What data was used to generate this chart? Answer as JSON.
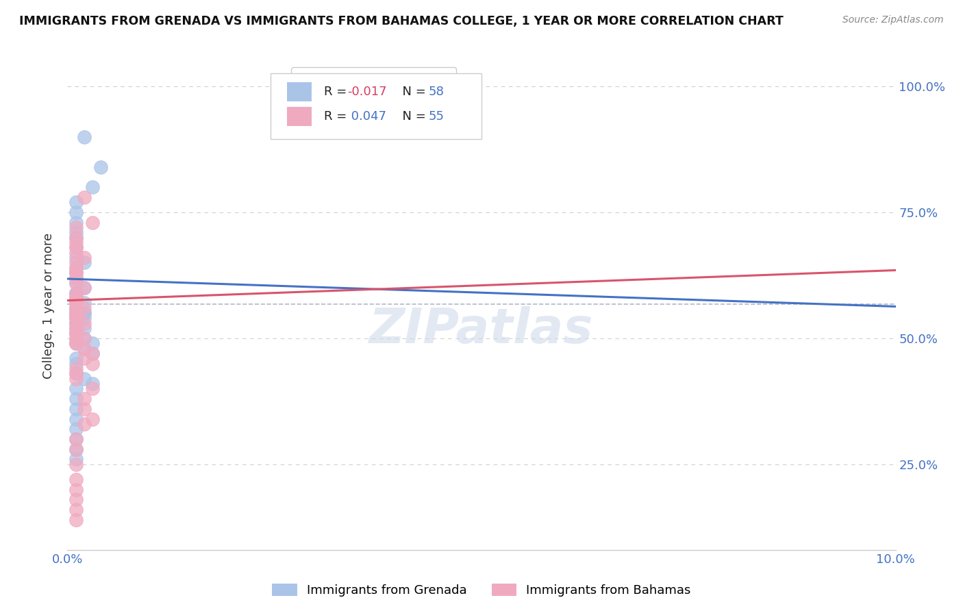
{
  "title": "IMMIGRANTS FROM GRENADA VS IMMIGRANTS FROM BAHAMAS COLLEGE, 1 YEAR OR MORE CORRELATION CHART",
  "source": "Source: ZipAtlas.com",
  "ylabel": "College, 1 year or more",
  "ytick_vals": [
    0.25,
    0.5,
    0.75,
    1.0
  ],
  "ytick_labels": [
    "25.0%",
    "50.0%",
    "75.0%",
    "100.0%"
  ],
  "xmin": 0.0,
  "xmax": 0.1,
  "ymin": 0.08,
  "ymax": 1.05,
  "grenada_R": -0.017,
  "grenada_N": 58,
  "bahamas_R": 0.047,
  "bahamas_N": 55,
  "grenada_color": "#aac4e8",
  "bahamas_color": "#f0aac0",
  "grenada_line_color": "#4472c4",
  "bahamas_line_color": "#d9546c",
  "watermark": "ZIPatlas",
  "legend_label_grenada": "Immigrants from Grenada",
  "legend_label_bahamas": "Immigrants from Bahamas",
  "ref_line_y": 0.565,
  "grid_color": "#d0d0d0",
  "background_color": "#ffffff",
  "grenada_x": [
    0.002,
    0.004,
    0.003,
    0.001,
    0.001,
    0.001,
    0.001,
    0.001,
    0.001,
    0.001,
    0.002,
    0.001,
    0.001,
    0.001,
    0.001,
    0.002,
    0.001,
    0.001,
    0.001,
    0.001,
    0.001,
    0.002,
    0.001,
    0.001,
    0.001,
    0.001,
    0.002,
    0.002,
    0.001,
    0.001,
    0.001,
    0.002,
    0.001,
    0.001,
    0.001,
    0.001,
    0.002,
    0.001,
    0.001,
    0.001,
    0.002,
    0.001,
    0.003,
    0.002,
    0.003,
    0.001,
    0.001,
    0.001,
    0.002,
    0.003,
    0.001,
    0.001,
    0.001,
    0.001,
    0.001,
    0.001,
    0.001,
    0.001
  ],
  "grenada_y": [
    0.9,
    0.84,
    0.8,
    0.77,
    0.75,
    0.73,
    0.71,
    0.7,
    0.68,
    0.66,
    0.65,
    0.64,
    0.63,
    0.62,
    0.61,
    0.6,
    0.59,
    0.59,
    0.58,
    0.58,
    0.57,
    0.57,
    0.57,
    0.56,
    0.56,
    0.56,
    0.55,
    0.55,
    0.55,
    0.55,
    0.54,
    0.54,
    0.54,
    0.53,
    0.53,
    0.52,
    0.52,
    0.51,
    0.51,
    0.5,
    0.5,
    0.49,
    0.49,
    0.48,
    0.47,
    0.46,
    0.45,
    0.43,
    0.42,
    0.41,
    0.4,
    0.38,
    0.36,
    0.34,
    0.32,
    0.3,
    0.28,
    0.26
  ],
  "bahamas_x": [
    0.001,
    0.003,
    0.002,
    0.001,
    0.001,
    0.001,
    0.001,
    0.002,
    0.001,
    0.001,
    0.001,
    0.001,
    0.001,
    0.001,
    0.002,
    0.001,
    0.001,
    0.001,
    0.001,
    0.001,
    0.001,
    0.002,
    0.001,
    0.001,
    0.001,
    0.001,
    0.002,
    0.001,
    0.001,
    0.001,
    0.001,
    0.002,
    0.001,
    0.001,
    0.001,
    0.002,
    0.003,
    0.002,
    0.003,
    0.001,
    0.001,
    0.001,
    0.003,
    0.002,
    0.002,
    0.003,
    0.002,
    0.001,
    0.001,
    0.001,
    0.001,
    0.001,
    0.001,
    0.001,
    0.001
  ],
  "bahamas_y": [
    0.68,
    0.73,
    0.78,
    0.72,
    0.7,
    0.69,
    0.67,
    0.66,
    0.65,
    0.64,
    0.63,
    0.63,
    0.62,
    0.61,
    0.6,
    0.59,
    0.58,
    0.58,
    0.57,
    0.57,
    0.56,
    0.56,
    0.55,
    0.55,
    0.54,
    0.54,
    0.53,
    0.53,
    0.52,
    0.51,
    0.51,
    0.5,
    0.5,
    0.49,
    0.49,
    0.48,
    0.47,
    0.46,
    0.45,
    0.44,
    0.43,
    0.42,
    0.4,
    0.38,
    0.36,
    0.34,
    0.33,
    0.3,
    0.28,
    0.25,
    0.22,
    0.2,
    0.18,
    0.16,
    0.14
  ]
}
